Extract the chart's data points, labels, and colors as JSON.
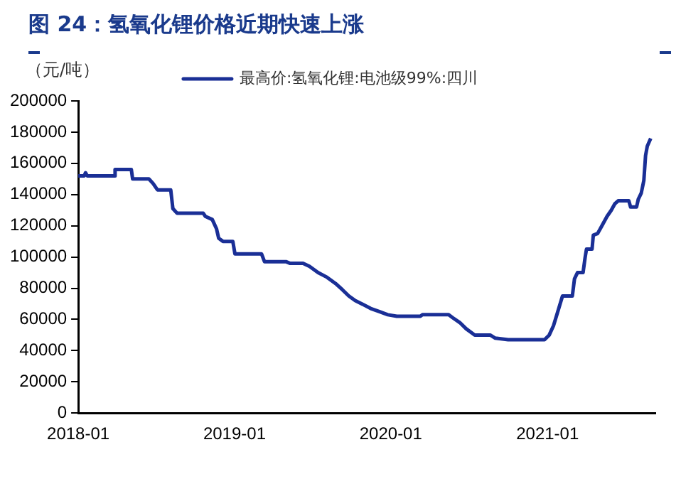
{
  "chart_data": {
    "type": "line",
    "title": "图 24：氢氧化锂价格近期快速上涨",
    "ylabel": "（元/吨）",
    "x": [
      "2018-01-01",
      "2018-01-15",
      "2018-01-18",
      "2018-01-22",
      "2018-03-25",
      "2018-03-28",
      "2018-05-05",
      "2018-05-08",
      "2018-06-15",
      "2018-06-25",
      "2018-07-05",
      "2018-08-05",
      "2018-08-10",
      "2018-08-20",
      "2018-10-20",
      "2018-10-25",
      "2018-11-10",
      "2018-11-20",
      "2018-11-25",
      "2018-12-05",
      "2018-12-28",
      "2019-01-02",
      "2019-03-05",
      "2019-03-12",
      "2019-05-01",
      "2019-05-10",
      "2019-06-10",
      "2019-06-25",
      "2019-07-15",
      "2019-08-05",
      "2019-08-25",
      "2019-09-10",
      "2019-09-25",
      "2019-10-10",
      "2019-10-25",
      "2019-11-15",
      "2019-12-05",
      "2019-12-25",
      "2020-01-15",
      "2020-03-10",
      "2020-03-15",
      "2020-05-15",
      "2020-05-25",
      "2020-06-10",
      "2020-06-25",
      "2020-07-10",
      "2020-07-15",
      "2020-08-20",
      "2020-09-01",
      "2020-10-01",
      "2020-12-25",
      "2021-01-05",
      "2021-01-15",
      "2021-01-25",
      "2021-02-05",
      "2021-02-28",
      "2021-03-05",
      "2021-03-12",
      "2021-03-25",
      "2021-03-30",
      "2021-04-02",
      "2021-04-15",
      "2021-04-18",
      "2021-04-28",
      "2021-05-08",
      "2021-05-20",
      "2021-05-30",
      "2021-06-07",
      "2021-06-15",
      "2021-07-10",
      "2021-07-14",
      "2021-07-28",
      "2021-08-01",
      "2021-08-08",
      "2021-08-14",
      "2021-08-18",
      "2021-08-22",
      "2021-08-30"
    ],
    "series": [
      {
        "name": "最高价:氢氧化锂:电池级99%:四川",
        "color": "#1a2f96",
        "values": [
          152000,
          152000,
          154000,
          152000,
          152000,
          156000,
          156000,
          150000,
          150000,
          147000,
          143000,
          143000,
          131000,
          128000,
          128000,
          126000,
          124000,
          118000,
          112000,
          110000,
          110000,
          102000,
          102000,
          97000,
          97000,
          96000,
          96000,
          94000,
          90000,
          87000,
          83000,
          79000,
          75000,
          72000,
          70000,
          67000,
          65000,
          63000,
          62000,
          62000,
          63000,
          63000,
          61000,
          58000,
          54000,
          51000,
          50000,
          50000,
          48000,
          47000,
          47000,
          50000,
          56000,
          65000,
          75000,
          75000,
          86000,
          90000,
          90000,
          100000,
          105000,
          105000,
          114000,
          115000,
          120000,
          126000,
          130000,
          134000,
          136000,
          136000,
          132000,
          132000,
          137000,
          141000,
          149000,
          165000,
          171000,
          176000
        ]
      }
    ],
    "xlim": [
      "2018-01-01",
      "2021-09-10"
    ],
    "xticks": [
      "2018-01",
      "2019-01",
      "2020-01",
      "2021-01"
    ],
    "ylim": [
      0,
      200000
    ],
    "yticks": [
      0,
      20000,
      40000,
      60000,
      80000,
      100000,
      120000,
      140000,
      160000,
      180000,
      200000
    ],
    "grid": false,
    "legend": "top",
    "marker": "none",
    "line_style": "solid"
  }
}
